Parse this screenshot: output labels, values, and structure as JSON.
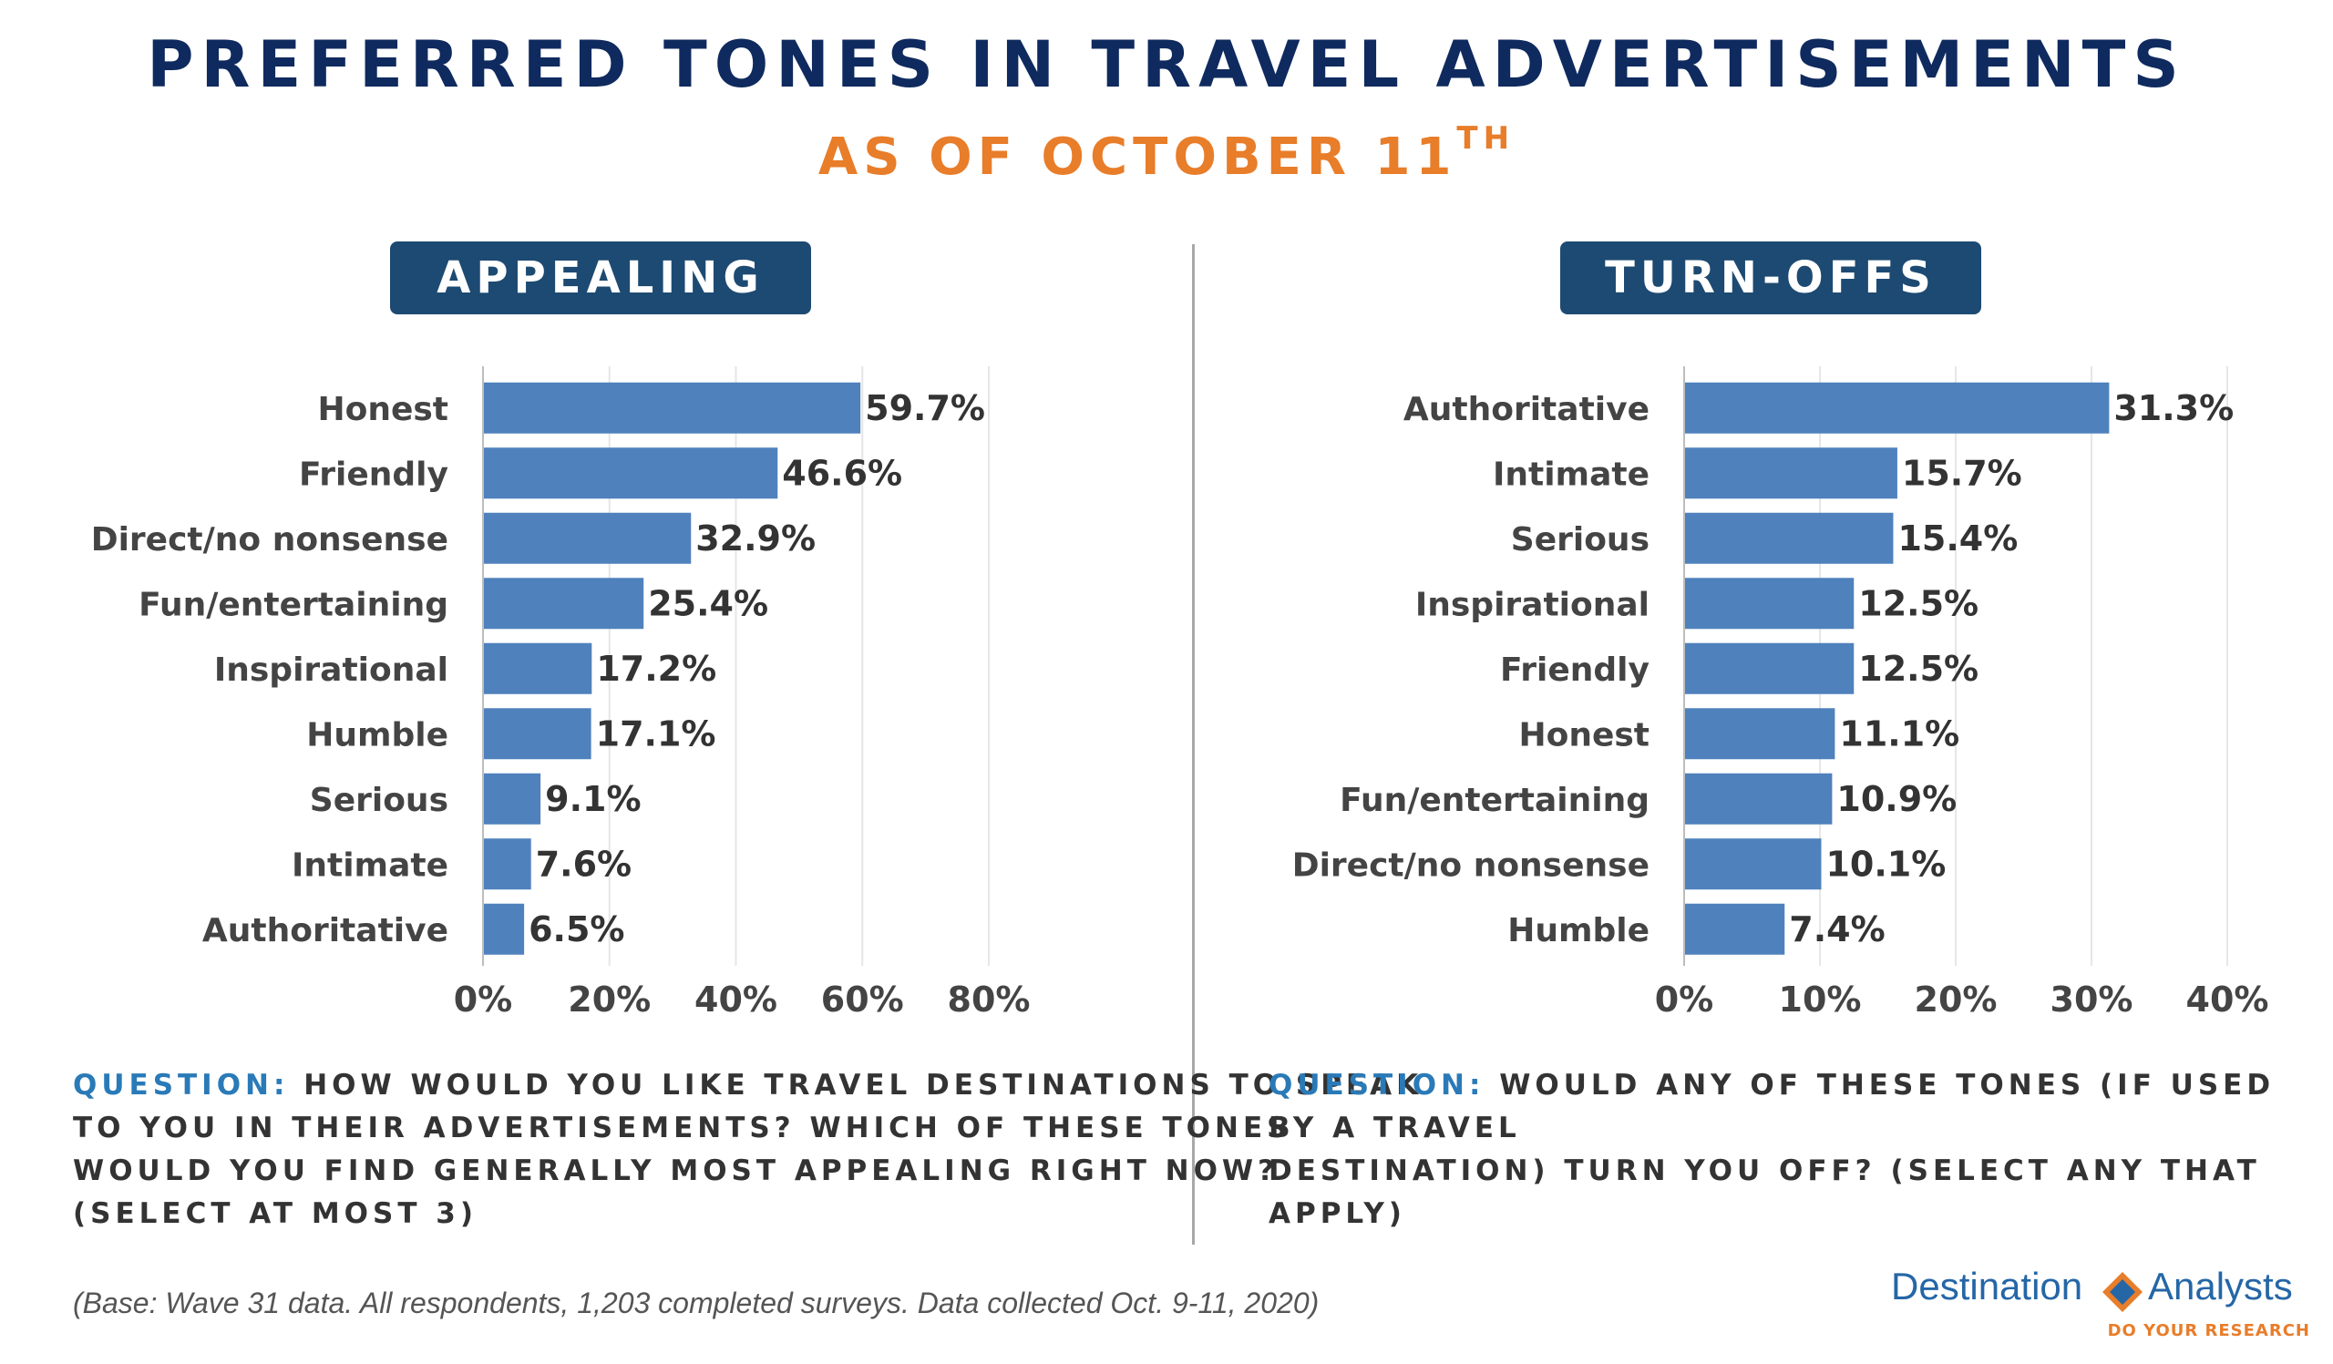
{
  "title": "PREFERRED TONES IN TRAVEL ADVERTISEMENTS",
  "subtitle": "AS OF OCTOBER 11",
  "subtitle_sup": "TH",
  "panels": {
    "left": {
      "label": "APPEALING",
      "question_label": "QUESTION:",
      "question_lines": [
        "HOW WOULD YOU LIKE TRAVEL DESTINATIONS TO SPEAK",
        "TO YOU IN THEIR ADVERTISEMENTS? WHICH OF THESE TONES",
        "WOULD YOU FIND GENERALLY MOST APPEALING RIGHT NOW?",
        "(SELECT AT MOST 3)"
      ]
    },
    "right": {
      "label": "TURN-OFFS",
      "question_label": "QUESTION:",
      "question_lines": [
        "WOULD ANY OF THESE TONES (IF USED BY A TRAVEL",
        "DESTINATION) TURN YOU OFF? (SELECT ANY THAT APPLY)"
      ]
    }
  },
  "base_note": "(Base: Wave 31 data. All respondents, 1,203 completed surveys. Data collected Oct. 9-11, 2020)",
  "logo": {
    "word1": "Destination",
    "word2": "Analysts",
    "tagline": "DO YOUR RESEARCH"
  },
  "colors": {
    "bar": "#4f81bd",
    "title": "#0f2a5e",
    "subtitle": "#e87d2a",
    "panel_label_bg": "#1d4a72",
    "grid": "#e6e6e6"
  },
  "chart_data": [
    {
      "type": "bar",
      "orientation": "horizontal",
      "title": "APPEALING",
      "categories": [
        "Honest",
        "Friendly",
        "Direct/no nonsense",
        "Fun/entertaining",
        "Inspirational",
        "Humble",
        "Serious",
        "Intimate",
        "Authoritative"
      ],
      "values": [
        59.7,
        46.6,
        32.9,
        25.4,
        17.2,
        17.1,
        9.1,
        7.6,
        6.5
      ],
      "data_labels": [
        "59.7%",
        "46.6%",
        "32.9%",
        "25.4%",
        "17.2%",
        "17.1%",
        "9.1%",
        "7.6%",
        "6.5%"
      ],
      "xlim": [
        0,
        80
      ],
      "ticks": [
        0,
        20,
        40,
        60,
        80
      ],
      "tick_labels": [
        "0%",
        "20%",
        "40%",
        "60%",
        "80%"
      ],
      "grid": true
    },
    {
      "type": "bar",
      "orientation": "horizontal",
      "title": "TURN-OFFS",
      "categories": [
        "Authoritative",
        "Intimate",
        "Serious",
        "Inspirational",
        "Friendly",
        "Honest",
        "Fun/entertaining",
        "Direct/no nonsense",
        "Humble"
      ],
      "values": [
        31.3,
        15.7,
        15.4,
        12.5,
        12.5,
        11.1,
        10.9,
        10.1,
        7.4
      ],
      "data_labels": [
        "31.3%",
        "15.7%",
        "15.4%",
        "12.5%",
        "12.5%",
        "11.1%",
        "10.9%",
        "10.1%",
        "7.4%"
      ],
      "xlim": [
        0,
        40
      ],
      "ticks": [
        0,
        10,
        20,
        30,
        40
      ],
      "tick_labels": [
        "0%",
        "10%",
        "20%",
        "30%",
        "40%"
      ],
      "grid": true
    }
  ]
}
